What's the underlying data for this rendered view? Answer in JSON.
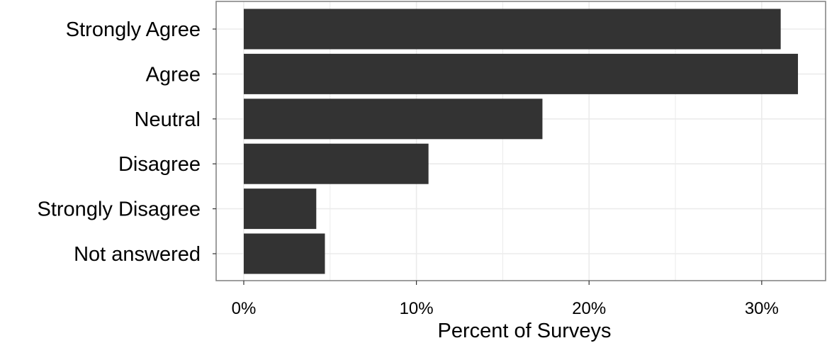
{
  "chart_data": {
    "type": "bar",
    "orientation": "horizontal",
    "categories": [
      "Strongly Agree",
      "Agree",
      "Neutral",
      "Disagree",
      "Strongly Disagree",
      "Not answered"
    ],
    "values": [
      31.1,
      32.1,
      17.3,
      10.7,
      4.2,
      4.7
    ],
    "xlabel": "Percent of Surveys",
    "ylabel": "",
    "xlim": [
      -1.6,
      33.7
    ],
    "xticks": [
      0,
      10,
      20,
      30
    ],
    "xtick_labels": [
      "0%",
      "10%",
      "20%",
      "30%"
    ],
    "grid": true,
    "bar_color": "#333333",
    "grid_color": "#ebebeb",
    "panel_border_color": "#7f7f7f"
  }
}
